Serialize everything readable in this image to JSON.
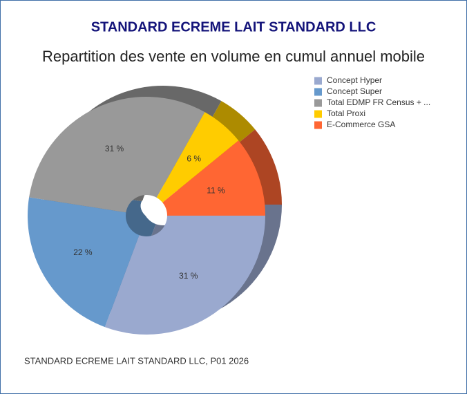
{
  "chart_data": {
    "type": "pie",
    "title": "STANDARD ECREME LAIT STANDARD LLC",
    "subtitle": "Repartition des vente en volume en cumul annuel mobile",
    "categories": [
      "Concept Hyper",
      "Concept Super",
      "Total EDMP FR Census + ...",
      "Total Proxi",
      "E-Commerce GSA"
    ],
    "values": [
      31,
      22,
      31,
      6,
      11
    ],
    "value_labels": [
      "31 %",
      "22 %",
      "31 %",
      "6 %",
      "11 %"
    ],
    "colors": [
      "#9aa9cf",
      "#6699cc",
      "#999999",
      "#ffcc00",
      "#ff6633"
    ],
    "legend": "top-right",
    "footer": "STANDARD ECREME LAIT STANDARD LLC, P01 2026"
  }
}
